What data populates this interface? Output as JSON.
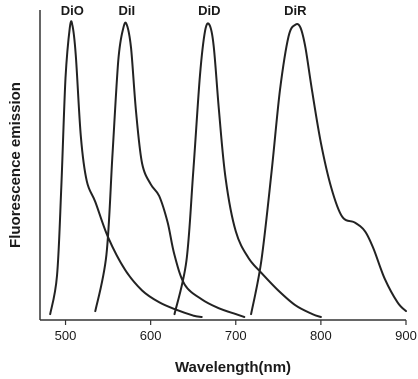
{
  "chart_data": {
    "type": "line",
    "title": "",
    "xlabel": "Wavelength(nm)",
    "ylabel": "Fluorescence emission",
    "xlim": [
      470,
      900
    ],
    "ylim": [
      0,
      1.05
    ],
    "xticks": [
      500,
      600,
      700,
      800,
      900
    ],
    "grid": false,
    "legend": "labels above peaks",
    "line_color": "#222222",
    "series": [
      {
        "name": "DiO",
        "x": [
          482,
          490,
          495,
          500,
          505,
          508,
          512,
          518,
          525,
          535,
          550,
          570,
          590,
          610,
          630,
          650,
          660
        ],
        "y": [
          0.02,
          0.15,
          0.45,
          0.82,
          0.99,
          1.0,
          0.9,
          0.62,
          0.47,
          0.4,
          0.28,
          0.17,
          0.1,
          0.06,
          0.035,
          0.015,
          0.01
        ]
      },
      {
        "name": "DiI",
        "x": [
          535,
          548,
          555,
          562,
          568,
          572,
          577,
          583,
          590,
          600,
          610,
          620,
          628,
          640,
          660,
          680,
          700,
          710
        ],
        "y": [
          0.03,
          0.22,
          0.55,
          0.88,
          0.99,
          1.0,
          0.92,
          0.7,
          0.53,
          0.46,
          0.42,
          0.33,
          0.22,
          0.12,
          0.07,
          0.04,
          0.02,
          0.01
        ]
      },
      {
        "name": "DiD",
        "x": [
          628,
          642,
          650,
          658,
          664,
          669,
          674,
          680,
          688,
          700,
          715,
          730,
          750,
          770,
          790,
          800
        ],
        "y": [
          0.02,
          0.2,
          0.5,
          0.83,
          0.98,
          1.0,
          0.93,
          0.72,
          0.48,
          0.3,
          0.21,
          0.16,
          0.1,
          0.05,
          0.02,
          0.01
        ]
      },
      {
        "name": "DiR",
        "x": [
          718,
          730,
          742,
          752,
          762,
          770,
          776,
          782,
          790,
          800,
          812,
          825,
          840,
          852,
          862,
          875,
          890,
          900
        ],
        "y": [
          0.02,
          0.2,
          0.5,
          0.78,
          0.96,
          1.0,
          0.99,
          0.92,
          0.77,
          0.6,
          0.45,
          0.35,
          0.33,
          0.3,
          0.24,
          0.14,
          0.06,
          0.03
        ]
      }
    ]
  }
}
